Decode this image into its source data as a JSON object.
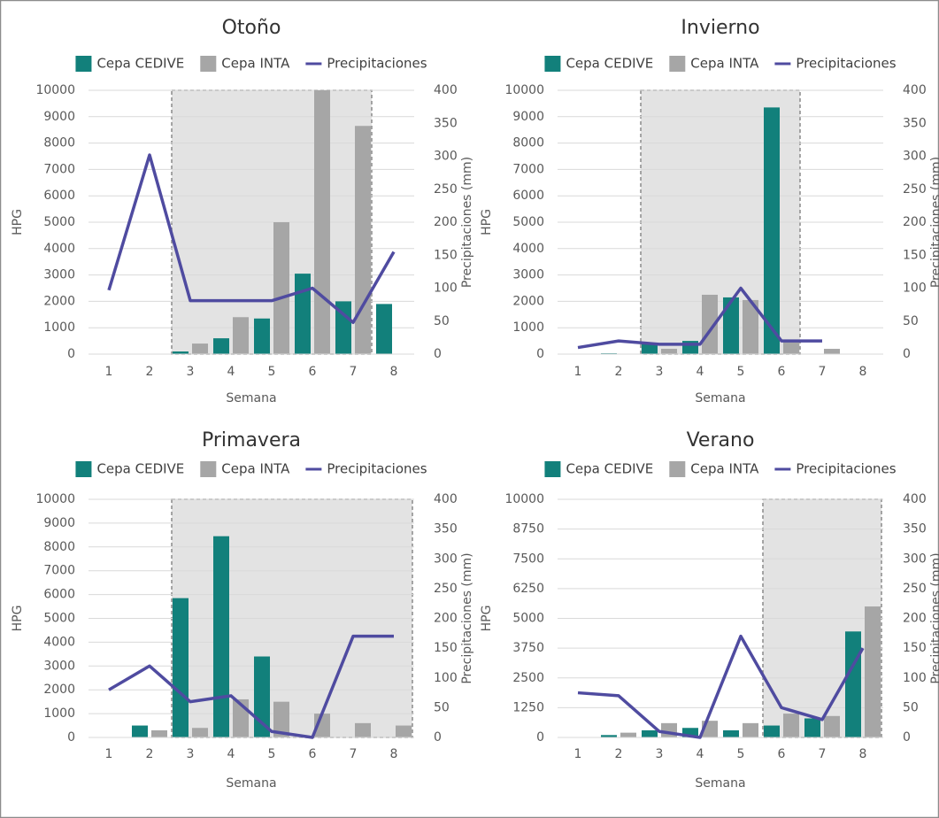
{
  "chart_data": [
    {
      "type": "bar",
      "title": "Otoño",
      "x_label": "Semana",
      "y_label": "HPG",
      "y2_label": "Precipitaciones (mm)",
      "categories": [
        1,
        2,
        3,
        4,
        5,
        6,
        7,
        8
      ],
      "shaded": [
        3,
        7
      ],
      "ylim": [
        0,
        10000
      ],
      "yticks": [
        0,
        1000,
        2000,
        3000,
        4000,
        5000,
        6000,
        7000,
        8000,
        9000,
        10000
      ],
      "y2lim": [
        0,
        400
      ],
      "y2ticks": [
        0,
        50,
        100,
        150,
        200,
        250,
        300,
        350,
        400
      ],
      "grid": true,
      "series": [
        {
          "name": "Cepa CEDIVE",
          "type": "bar",
          "color": "#12807b",
          "values": [
            0,
            0,
            100,
            600,
            1350,
            3050,
            2000,
            1900
          ]
        },
        {
          "name": "Cepa INTA",
          "type": "bar",
          "color": "#a6a6a6",
          "values": [
            0,
            0,
            400,
            1400,
            5000,
            10000,
            8650,
            0
          ]
        },
        {
          "name": "Precipitaciones",
          "type": "line",
          "axis": "y2",
          "color": "#4f4ba0",
          "values": [
            97,
            302,
            81,
            81,
            81,
            100,
            48,
            155
          ]
        }
      ]
    },
    {
      "type": "bar",
      "title": "Invierno",
      "x_label": "Semana",
      "y_label": "HPG",
      "y2_label": "Precipitaciones (mm)",
      "categories": [
        1,
        2,
        3,
        4,
        5,
        6,
        7,
        8
      ],
      "shaded": [
        3,
        6
      ],
      "ylim": [
        0,
        10000
      ],
      "yticks": [
        0,
        1000,
        2000,
        3000,
        4000,
        5000,
        6000,
        7000,
        8000,
        9000,
        10000
      ],
      "y2lim": [
        0,
        400
      ],
      "y2ticks": [
        0,
        50,
        100,
        150,
        200,
        250,
        300,
        350,
        400
      ],
      "grid": true,
      "series": [
        {
          "name": "Cepa CEDIVE",
          "type": "bar",
          "color": "#12807b",
          "values": [
            0,
            30,
            400,
            500,
            2150,
            9350,
            0,
            0
          ]
        },
        {
          "name": "Cepa INTA",
          "type": "bar",
          "color": "#a6a6a6",
          "values": [
            0,
            0,
            200,
            2250,
            2050,
            450,
            200,
            0
          ]
        },
        {
          "name": "Precipitaciones",
          "type": "line",
          "axis": "y2",
          "color": "#4f4ba0",
          "values": [
            10,
            20,
            15,
            15,
            100,
            20,
            20,
            null
          ]
        }
      ]
    },
    {
      "type": "bar",
      "title": "Primavera",
      "x_label": "Semana",
      "y_label": "HPG",
      "y2_label": "Precipitaciones (mm)",
      "categories": [
        1,
        2,
        3,
        4,
        5,
        6,
        7,
        8
      ],
      "shaded": [
        3,
        8
      ],
      "ylim": [
        0,
        10000
      ],
      "yticks": [
        0,
        1000,
        2000,
        3000,
        4000,
        5000,
        6000,
        7000,
        8000,
        9000,
        10000
      ],
      "y2lim": [
        0,
        400
      ],
      "y2ticks": [
        0,
        50,
        100,
        150,
        200,
        250,
        300,
        350,
        400
      ],
      "grid": true,
      "series": [
        {
          "name": "Cepa CEDIVE",
          "type": "bar",
          "color": "#12807b",
          "values": [
            0,
            500,
            5850,
            8450,
            3400,
            0,
            0,
            0
          ]
        },
        {
          "name": "Cepa INTA",
          "type": "bar",
          "color": "#a6a6a6",
          "values": [
            0,
            300,
            400,
            1600,
            1500,
            1000,
            600,
            500
          ]
        },
        {
          "name": "Precipitaciones",
          "type": "line",
          "axis": "y2",
          "color": "#4f4ba0",
          "values": [
            80,
            120,
            60,
            70,
            10,
            0,
            170,
            170
          ]
        }
      ]
    },
    {
      "type": "bar",
      "title": "Verano",
      "x_label": "Semana",
      "y_label": "HPG",
      "y2_label": "Precipitaciones (mm)",
      "categories": [
        1,
        2,
        3,
        4,
        5,
        6,
        7,
        8
      ],
      "shaded": [
        6,
        8
      ],
      "ylim": [
        0,
        10000
      ],
      "yticks": [
        0,
        1250,
        2500,
        3750,
        5000,
        6250,
        7500,
        8750,
        10000
      ],
      "y2lim": [
        0,
        400
      ],
      "y2ticks": [
        0,
        50,
        100,
        150,
        200,
        250,
        300,
        350,
        400
      ],
      "grid": true,
      "series": [
        {
          "name": "Cepa CEDIVE",
          "type": "bar",
          "color": "#12807b",
          "values": [
            0,
            100,
            300,
            400,
            300,
            500,
            800,
            4450
          ]
        },
        {
          "name": "Cepa INTA",
          "type": "bar",
          "color": "#a6a6a6",
          "values": [
            0,
            200,
            600,
            700,
            600,
            1000,
            900,
            5500
          ]
        },
        {
          "name": "Precipitaciones",
          "type": "line",
          "axis": "y2",
          "color": "#4f4ba0",
          "values": [
            75,
            70,
            10,
            0,
            170,
            50,
            30,
            150
          ]
        }
      ]
    }
  ]
}
